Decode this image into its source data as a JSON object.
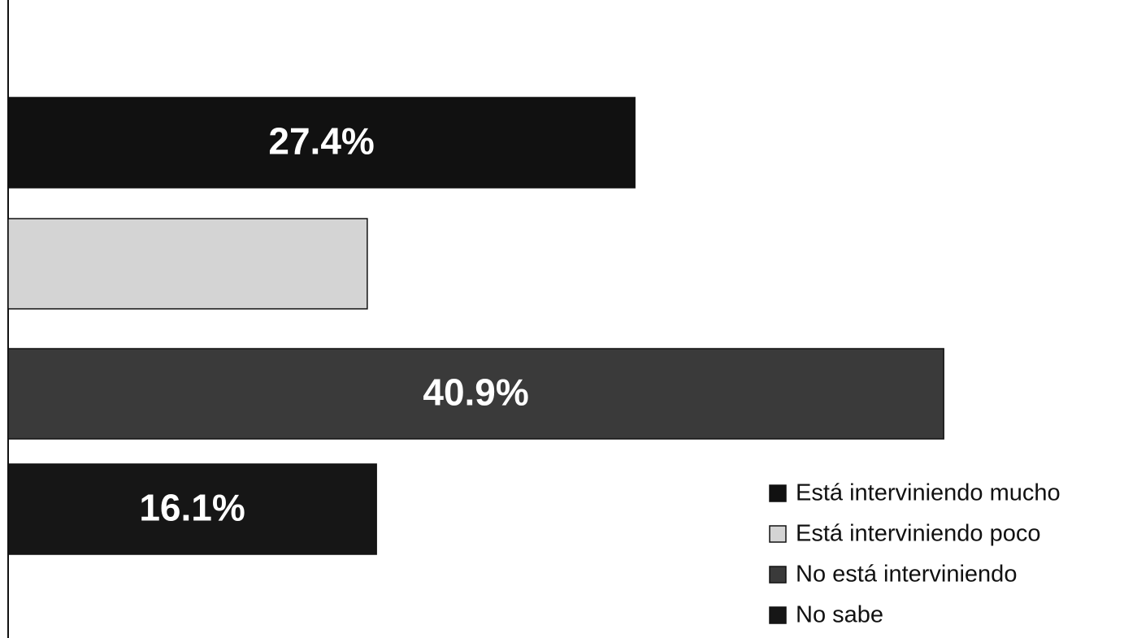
{
  "chart_data": {
    "type": "hbar",
    "series": [
      {
        "name": "Está interviniendo mucho",
        "color": "#111111",
        "values": [
          27.4
        ],
        "value_labels": [
          "27.4%"
        ]
      },
      {
        "name": "Está interviniendo poco",
        "color": "#d4d4d4",
        "values": [
          15.7
        ]
      },
      {
        "name": "No está interviniendo",
        "color": "#3a3a3a",
        "values": [
          40.9
        ],
        "value_labels": [
          "40.9%"
        ]
      },
      {
        "name": "No sabe",
        "color": "#161616",
        "values": [
          16.1
        ],
        "value_labels": [
          "16.1%"
        ]
      }
    ],
    "xlim": [
      0,
      48
    ],
    "legend": "lower-right"
  }
}
